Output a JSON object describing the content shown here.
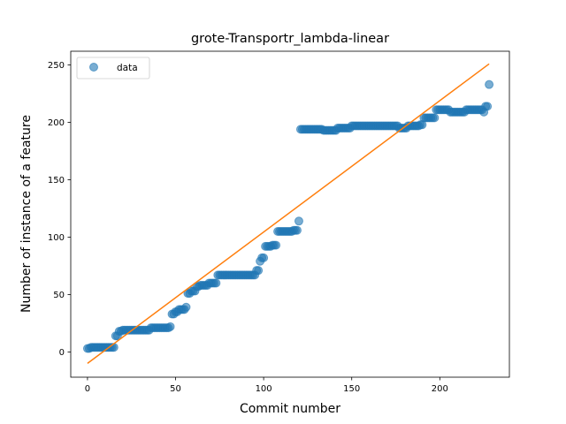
{
  "chart_data": {
    "type": "scatter",
    "title": "grote-Transportr_lambda-linear",
    "xlabel": "Commit number",
    "ylabel": "Number of instance of a feature",
    "xlim": [
      -9.5,
      239.5
    ],
    "ylim": [
      -22,
      262
    ],
    "xticks": [
      0,
      50,
      100,
      150,
      200
    ],
    "yticks": [
      0,
      50,
      100,
      150,
      200,
      250
    ],
    "grid": false,
    "legend": {
      "position": "top-left",
      "entries": [
        "data"
      ]
    },
    "colors": {
      "points": "#1f77b4",
      "fit": "#ff7f0e"
    },
    "series": [
      {
        "name": "data",
        "kind": "scatter",
        "color": "#1f77b4",
        "runs": [
          {
            "x_start": 0,
            "x_end": 1,
            "y": 3
          },
          {
            "x_start": 2,
            "x_end": 15,
            "y": 4
          },
          {
            "x_start": 16,
            "x_end": 17,
            "y": 14
          },
          {
            "x_start": 18,
            "x_end": 19,
            "y": 18
          },
          {
            "x_start": 20,
            "x_end": 35,
            "y": 19
          },
          {
            "x_start": 36,
            "x_end": 46,
            "y": 21
          },
          {
            "x_start": 47,
            "x_end": 47,
            "y": 22
          },
          {
            "x_start": 48,
            "x_end": 49,
            "y": 33
          },
          {
            "x_start": 50,
            "x_end": 51,
            "y": 35
          },
          {
            "x_start": 52,
            "x_end": 55,
            "y": 37
          },
          {
            "x_start": 56,
            "x_end": 56,
            "y": 39
          },
          {
            "x_start": 57,
            "x_end": 58,
            "y": 51
          },
          {
            "x_start": 59,
            "x_end": 61,
            "y": 53
          },
          {
            "x_start": 62,
            "x_end": 63,
            "y": 57
          },
          {
            "x_start": 64,
            "x_end": 68,
            "y": 58
          },
          {
            "x_start": 69,
            "x_end": 73,
            "y": 60
          },
          {
            "x_start": 74,
            "x_end": 95,
            "y": 67
          },
          {
            "x_start": 96,
            "x_end": 97,
            "y": 71
          },
          {
            "x_start": 98,
            "x_end": 98,
            "y": 79
          },
          {
            "x_start": 99,
            "x_end": 100,
            "y": 82
          },
          {
            "x_start": 101,
            "x_end": 104,
            "y": 92
          },
          {
            "x_start": 105,
            "x_end": 107,
            "y": 93
          },
          {
            "x_start": 108,
            "x_end": 116,
            "y": 105
          },
          {
            "x_start": 117,
            "x_end": 119,
            "y": 106
          },
          {
            "x_start": 120,
            "x_end": 120,
            "y": 114
          },
          {
            "x_start": 121,
            "x_end": 133,
            "y": 194
          },
          {
            "x_start": 134,
            "x_end": 141,
            "y": 193
          },
          {
            "x_start": 142,
            "x_end": 149,
            "y": 195
          },
          {
            "x_start": 150,
            "x_end": 176,
            "y": 197
          },
          {
            "x_start": 177,
            "x_end": 181,
            "y": 195
          },
          {
            "x_start": 182,
            "x_end": 188,
            "y": 197
          },
          {
            "x_start": 189,
            "x_end": 190,
            "y": 198
          },
          {
            "x_start": 191,
            "x_end": 197,
            "y": 204
          },
          {
            "x_start": 198,
            "x_end": 205,
            "y": 211
          },
          {
            "x_start": 206,
            "x_end": 214,
            "y": 209
          },
          {
            "x_start": 215,
            "x_end": 224,
            "y": 211
          },
          {
            "x_start": 225,
            "x_end": 225,
            "y": 209
          },
          {
            "x_start": 226,
            "x_end": 227,
            "y": 214
          }
        ],
        "points": [
          {
            "x": 228,
            "y": 233
          }
        ]
      },
      {
        "kind": "line",
        "color": "#ff7f0e",
        "x": [
          0,
          228
        ],
        "y": [
          -10,
          251
        ]
      }
    ]
  }
}
